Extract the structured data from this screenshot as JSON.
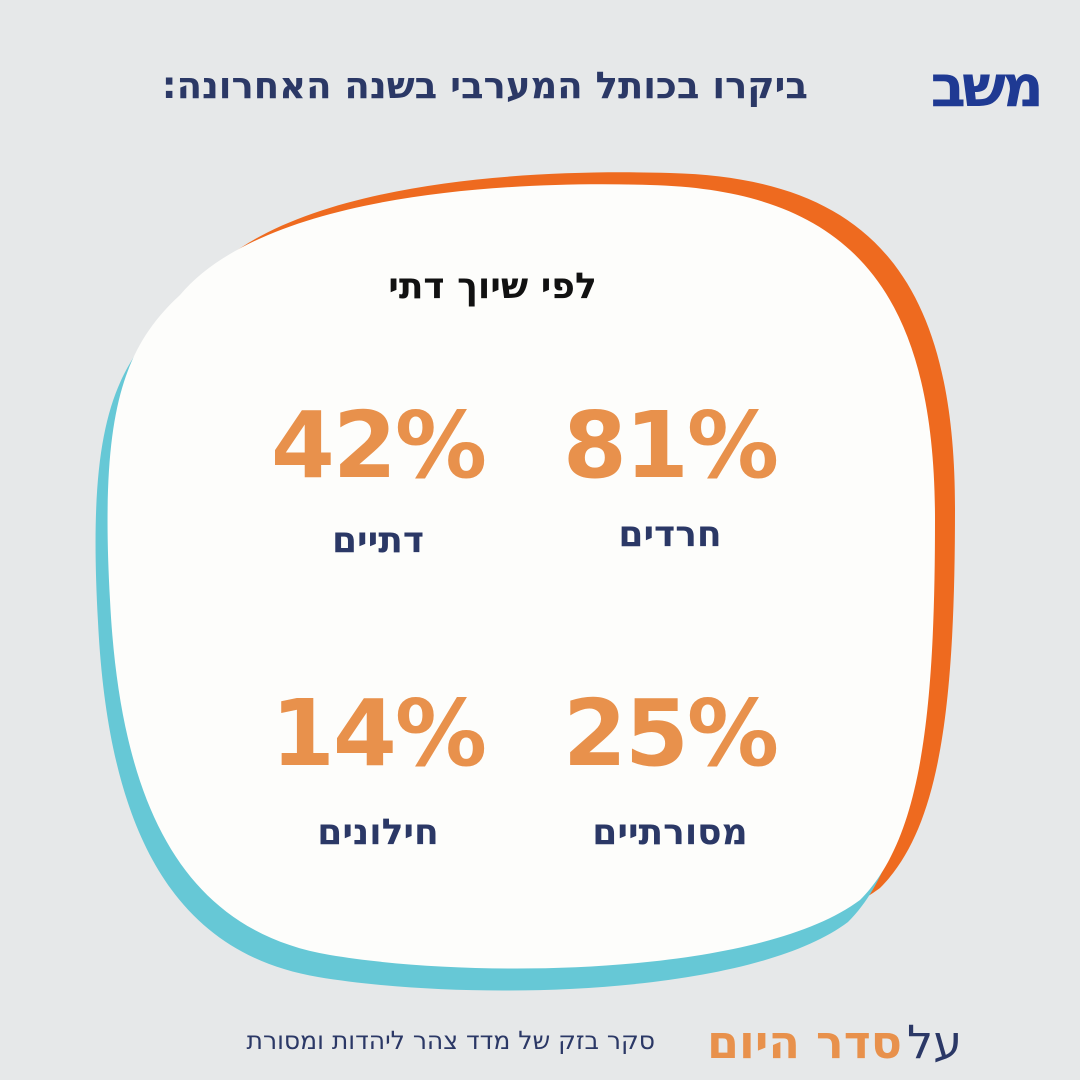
{
  "header": {
    "title": "ביקרו בכותל המערבי בשנה האחרונה:",
    "logo": "משב"
  },
  "card": {
    "title": "לפי שיוך דתי",
    "items": [
      {
        "value": "81%",
        "label": "חרדים"
      },
      {
        "value": "42%",
        "label": "דתיים"
      },
      {
        "value": "25%",
        "label": "מסורתיים"
      },
      {
        "value": "14%",
        "label": "חילונים"
      }
    ]
  },
  "footer": {
    "prefix": "על",
    "brand": "סדר היום",
    "source": "סקר בזק של מדד צהר ליהדות ומסורת"
  }
}
